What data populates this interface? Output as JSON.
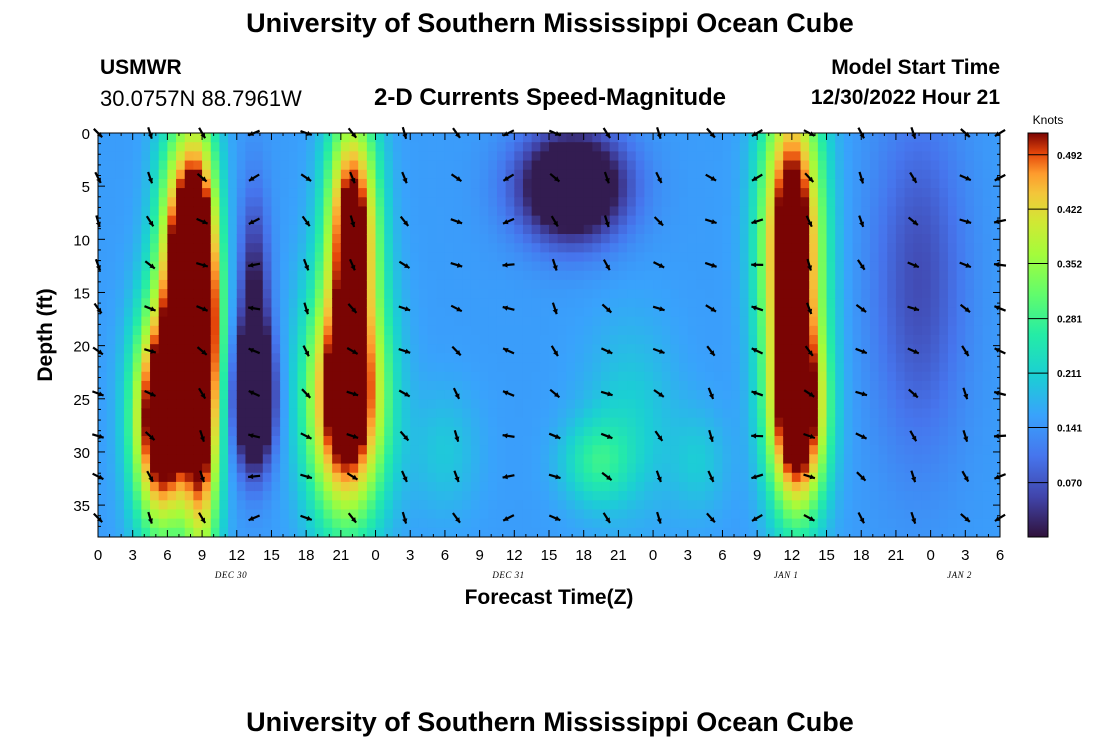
{
  "header": {
    "title": "University of Southern Mississippi Ocean Cube",
    "station": "USMWR",
    "coords": "30.0757N  88.7961W",
    "subtitle": "2-D Currents Speed-Magnitude",
    "model_start_label": "Model Start Time",
    "model_start_value": "12/30/2022 Hour 21"
  },
  "footer": {
    "title": "University of Southern Mississippi Ocean Cube"
  },
  "chart_data": {
    "type": "heatmap",
    "title": "2-D Currents Speed-Magnitude",
    "xlabel": "Forecast Time(Z)",
    "ylabel": "Depth (ft)",
    "x_range_hours": [
      0,
      78
    ],
    "ylim": [
      0,
      38
    ],
    "x_tick_labels": [
      "0",
      "3",
      "6",
      "9",
      "12",
      "15",
      "18",
      "21",
      "0",
      "3",
      "6",
      "9",
      "12",
      "15",
      "18",
      "21",
      "0",
      "3",
      "6",
      "9",
      "12",
      "15",
      "18",
      "21",
      "0",
      "3",
      "6"
    ],
    "y_ticks": [
      0,
      5,
      10,
      15,
      20,
      25,
      30,
      35
    ],
    "date_labels": [
      {
        "text": "DEC 30",
        "hour": 11.5
      },
      {
        "text": "DEC 31",
        "hour": 35.5
      },
      {
        "text": "JAN 1",
        "hour": 59.5
      },
      {
        "text": "JAN 2",
        "hour": 74.5
      }
    ],
    "colorbar": {
      "label": "Knots",
      "min": 0.0,
      "max": 0.52,
      "ticks": [
        "0.070",
        "0.141",
        "0.211",
        "0.281",
        "0.352",
        "0.422",
        "0.492"
      ]
    },
    "vector_hours": [
      0,
      4.5,
      9,
      13.5,
      18,
      22,
      26.5,
      31,
      35.5,
      39.5,
      44,
      48.5,
      53,
      57,
      61.5,
      66,
      70.5,
      75,
      78
    ],
    "vector_depths": [
      0,
      4.2,
      8.3,
      12.4,
      16.5,
      20.5,
      24.5,
      28.5,
      32.3,
      36.2
    ]
  },
  "colors": {
    "arrow": "#000000",
    "axis": "#000000"
  }
}
